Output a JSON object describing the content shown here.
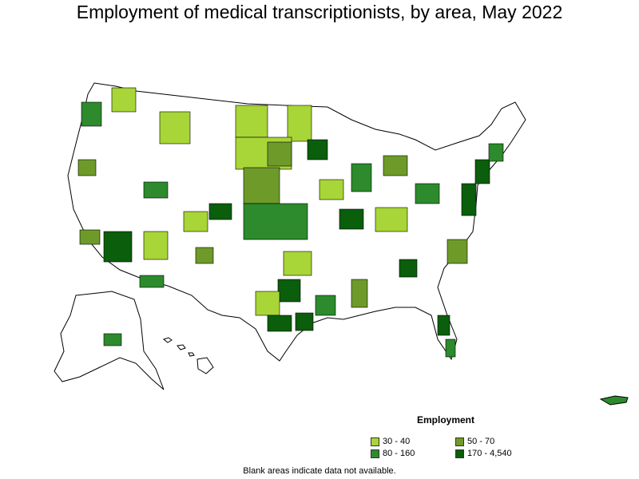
{
  "title": "Employment of medical transcriptionists, by area, May 2022",
  "legend": {
    "title": "Employment",
    "items": [
      {
        "label": "30 - 40",
        "color": "#a8d538"
      },
      {
        "label": "50 - 70",
        "color": "#6e9a2a"
      },
      {
        "label": "80 - 160",
        "color": "#2d8a2d"
      },
      {
        "label": "170 - 4,540",
        "color": "#0b5e0b"
      }
    ]
  },
  "footnote": "Blank areas indicate data not available.",
  "colors": {
    "outline": "#000000",
    "blank": "#ffffff"
  }
}
